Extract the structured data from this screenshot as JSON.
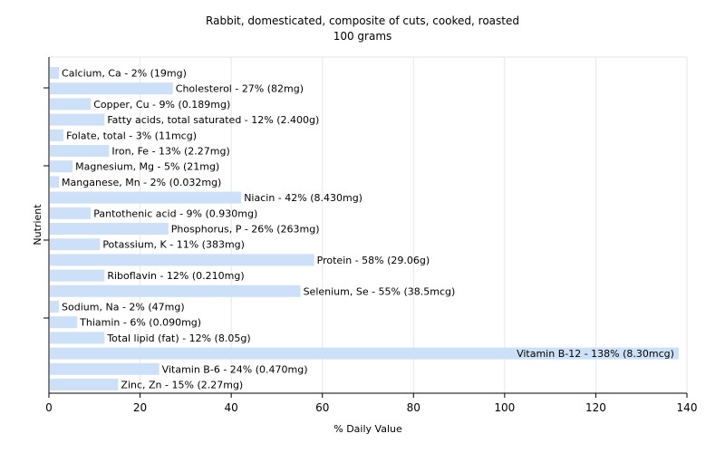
{
  "chart_data": {
    "type": "bar",
    "orientation": "horizontal",
    "title": "Rabbit, domesticated, composite of cuts, cooked, roasted",
    "subtitle": "100 grams",
    "xlabel": "% Daily Value",
    "ylabel": "Nutrient",
    "xlim": [
      0,
      140
    ],
    "xticks": [
      0,
      20,
      40,
      60,
      80,
      100,
      120,
      140
    ],
    "grid": true,
    "bar_color": "#cce0f7",
    "categories": [
      "Calcium, Ca",
      "Cholesterol",
      "Copper, Cu",
      "Fatty acids, total saturated",
      "Folate, total",
      "Iron, Fe",
      "Magnesium, Mg",
      "Manganese, Mn",
      "Niacin",
      "Pantothenic acid",
      "Phosphorus, P",
      "Potassium, K",
      "Protein",
      "Riboflavin",
      "Selenium, Se",
      "Sodium, Na",
      "Thiamin",
      "Total lipid (fat)",
      "Vitamin B-12",
      "Vitamin B-6",
      "Zinc, Zn"
    ],
    "values": [
      2,
      27,
      9,
      12,
      3,
      13,
      5,
      2,
      42,
      9,
      26,
      11,
      58,
      12,
      55,
      2,
      6,
      12,
      138,
      24,
      15
    ],
    "labels": [
      "Calcium, Ca - 2% (19mg)",
      "Cholesterol - 27% (82mg)",
      "Copper, Cu - 9% (0.189mg)",
      "Fatty acids, total saturated - 12% (2.400g)",
      "Folate, total - 3% (11mcg)",
      "Iron, Fe - 13% (2.27mg)",
      "Magnesium, Mg - 5% (21mg)",
      "Manganese, Mn - 2% (0.032mg)",
      "Niacin - 42% (8.430mg)",
      "Pantothenic acid - 9% (0.930mg)",
      "Phosphorus, P - 26% (263mg)",
      "Potassium, K - 11% (383mg)",
      "Protein - 58% (29.06g)",
      "Riboflavin - 12% (0.210mg)",
      "Selenium, Se - 55% (38.5mcg)",
      "Sodium, Na - 2% (47mg)",
      "Thiamin - 6% (0.090mg)",
      "Total lipid (fat) - 12% (8.05g)",
      "Vitamin B-12 - 138% (8.30mcg)",
      "Vitamin B-6 - 24% (0.470mg)",
      "Zinc, Zn - 15% (2.27mg)"
    ]
  }
}
